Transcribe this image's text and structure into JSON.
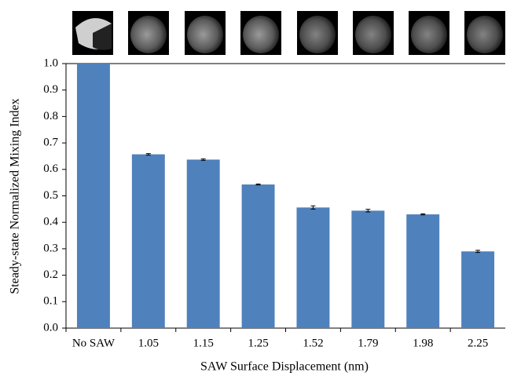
{
  "chart_data": {
    "type": "bar",
    "categories": [
      "No SAW",
      "1.05",
      "1.15",
      "1.25",
      "1.52",
      "1.79",
      "1.98",
      "2.25"
    ],
    "values": [
      1.0,
      0.657,
      0.637,
      0.543,
      0.456,
      0.444,
      0.43,
      0.29
    ],
    "errors": [
      null,
      0.003,
      0.003,
      0.002,
      0.006,
      0.005,
      0.002,
      0.004
    ],
    "color": "#4f81bd",
    "x_label": "SAW Surface Displacement (nm)",
    "y_label": "Steady-state Normalized Mixing Index",
    "ylim": [
      0,
      1
    ],
    "yticks": [
      {
        "value": 0,
        "label": "0.0"
      },
      0.1,
      0.2,
      0.3,
      0.4,
      0.5,
      0.6,
      0.7,
      0.8,
      0.9,
      {
        "value": 1,
        "label": "1.0"
      }
    ],
    "grid": false
  }
}
